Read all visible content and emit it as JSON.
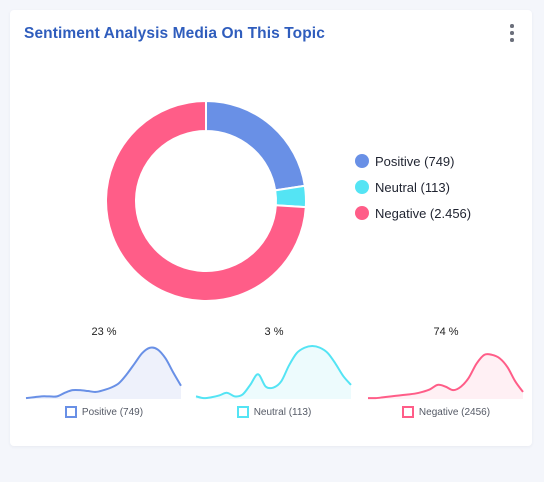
{
  "card": {
    "title": "Sentiment Analysis Media On This Topic"
  },
  "menu": {
    "icon": "more-vertical-icon"
  },
  "chart_data": [
    {
      "type": "pie",
      "variant": "donut",
      "labels": [
        "Positive (749)",
        "Neutral (113)",
        "Negative (2.456)"
      ],
      "values": [
        749,
        113,
        2456
      ],
      "colors": [
        "#6990e6",
        "#54e4f4",
        "#ff5d88"
      ],
      "legend_position": "right"
    },
    {
      "type": "area",
      "percent_label": "23 %",
      "legend": "Positive (749)",
      "color": "#6990e6",
      "fill": "#eef1fb",
      "x": [
        0,
        1,
        2,
        3,
        4,
        5,
        6,
        7,
        8,
        9,
        10,
        11,
        12,
        13,
        14,
        15,
        16,
        17,
        18,
        19,
        20
      ],
      "y": [
        1,
        2,
        3,
        3,
        3,
        7,
        10,
        10,
        9,
        8,
        10,
        13,
        18,
        28,
        40,
        52,
        58,
        56,
        46,
        30,
        15
      ]
    },
    {
      "type": "area",
      "percent_label": "3 %",
      "legend": "Neutral (113)",
      "color": "#54e4f4",
      "fill": "#edfbfd",
      "x": [
        0,
        1,
        2,
        3,
        4,
        5,
        6,
        7,
        8,
        9,
        10,
        11,
        12,
        13,
        14,
        15,
        16,
        17,
        18,
        19,
        20
      ],
      "y": [
        3,
        1,
        2,
        4,
        7,
        3,
        5,
        16,
        28,
        14,
        13,
        20,
        38,
        52,
        58,
        60,
        58,
        52,
        40,
        26,
        16
      ]
    },
    {
      "type": "area",
      "percent_label": "74 %",
      "legend": "Negative (2456)",
      "color": "#ff5d88",
      "fill": "#fff0f4",
      "x": [
        0,
        1,
        2,
        3,
        4,
        5,
        6,
        7,
        8,
        9,
        10,
        11,
        12,
        13,
        14,
        15,
        16,
        17,
        18,
        19,
        20
      ],
      "y": [
        1,
        1,
        2,
        3,
        4,
        5,
        6,
        8,
        11,
        16,
        14,
        10,
        14,
        24,
        40,
        50,
        50,
        46,
        36,
        20,
        8
      ]
    }
  ]
}
